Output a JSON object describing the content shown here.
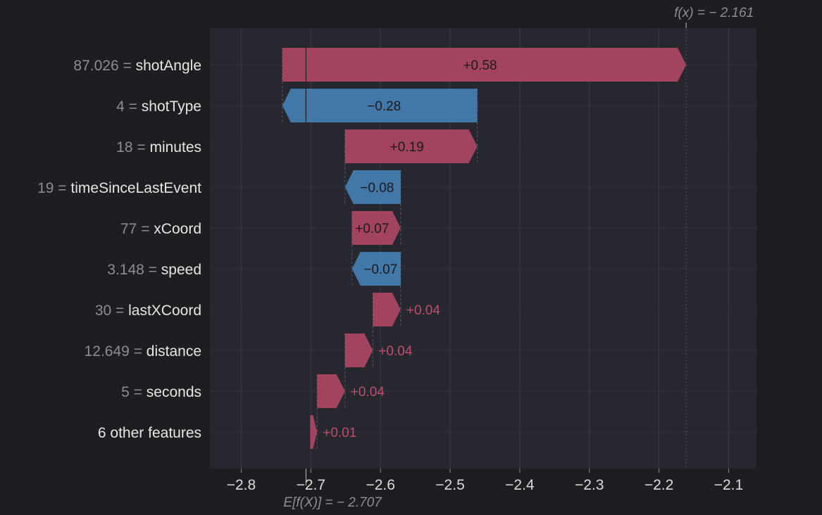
{
  "chart_data": {
    "type": "waterfall",
    "features": [
      {
        "value": "87.026",
        "name": "shotAngle",
        "contribution": 0.58,
        "label": "+0.58"
      },
      {
        "value": "4",
        "name": "shotType",
        "contribution": -0.28,
        "label": "−0.28"
      },
      {
        "value": "18",
        "name": "minutes",
        "contribution": 0.19,
        "label": "+0.19"
      },
      {
        "value": "19",
        "name": "timeSinceLastEvent",
        "contribution": -0.08,
        "label": "−0.08"
      },
      {
        "value": "77",
        "name": "xCoord",
        "contribution": 0.07,
        "label": "+0.07"
      },
      {
        "value": "3.148",
        "name": "speed",
        "contribution": -0.07,
        "label": "−0.07"
      },
      {
        "value": "30",
        "name": "lastXCoord",
        "contribution": 0.04,
        "label": "+0.04"
      },
      {
        "value": "12.649",
        "name": "distance",
        "contribution": 0.04,
        "label": "+0.04"
      },
      {
        "value": "5",
        "name": "seconds",
        "contribution": 0.04,
        "label": "+0.04"
      },
      {
        "value": "",
        "name": "6 other features",
        "contribution": 0.01,
        "label": "+0.01"
      }
    ],
    "base_value": -2.707,
    "base_label": "E[f(X)] = − 2.707",
    "output_value": -2.161,
    "output_label": "f(x) = − 2.161",
    "xlim": [
      -2.845,
      -2.06
    ],
    "xticks": [
      -2.8,
      -2.7,
      -2.6,
      -2.5,
      -2.4,
      -2.3,
      -2.2,
      -2.1
    ],
    "xtick_labels": [
      "−2.8",
      "−2.7",
      "−2.6",
      "−2.5",
      "−2.4",
      "−2.3",
      "−2.2",
      "−2.1"
    ],
    "grid": true,
    "colors": {
      "positive": "#a3445f",
      "negative": "#4278a8",
      "plot_background": "#26272f",
      "page_background": "#1d1e22"
    }
  }
}
